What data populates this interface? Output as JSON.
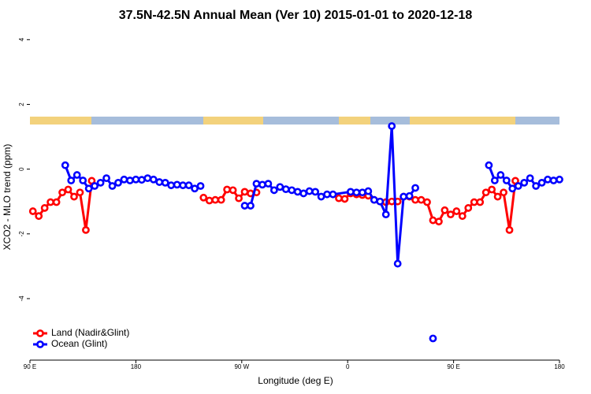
{
  "chart_data": {
    "type": "line",
    "title": "37.5N-42.5N Annual Mean (Ver 10)   2015-01-01 to 2020-12-18",
    "xlabel": "Longitude (deg E)",
    "ylabel": "XCO2 - MLO trend (ppm)",
    "xlim": [
      90,
      540
    ],
    "ylim": [
      -5.9,
      4.3
    ],
    "xticks": [
      {
        "value": 90,
        "label": "90 E"
      },
      180,
      {
        "value": 270,
        "label": "90 W"
      },
      {
        "value": 360,
        "label": "0"
      },
      {
        "value": 450,
        "label": "90 E"
      },
      {
        "value": 540,
        "label": "180"
      }
    ],
    "yticks": [
      4,
      2,
      0,
      -2,
      -4
    ],
    "legend": "bottom-left",
    "series": [
      {
        "name": "Land (Nadir&Glint)",
        "color": "#ff0000",
        "x": [
          92.5,
          97.5,
          102.5,
          107.5,
          112.5,
          117.5,
          122.5,
          127.5,
          132.5,
          137.5,
          142.5,
          null,
          237.5,
          242.5,
          247.5,
          252.5,
          257.5,
          262.5,
          267.5,
          272.5,
          277.5,
          282.5,
          null,
          352.5,
          357.5,
          362.5,
          367.5,
          372.5,
          377.5,
          382.5,
          387.5,
          392.5,
          397.5,
          402.5,
          407.5,
          412.5,
          417.5,
          422.5,
          427.5,
          432.5,
          437.5,
          442.5,
          447.5,
          452.5,
          457.5,
          462.5,
          467.5,
          472.5,
          477.5,
          482.5,
          487.5,
          492.5,
          497.5,
          502.5
        ],
        "values": [
          -1.3,
          -1.45,
          -1.2,
          -1.02,
          -1.02,
          -0.72,
          -0.63,
          -0.85,
          -0.72,
          -1.88,
          -0.36,
          null,
          -0.88,
          -0.97,
          -0.95,
          -0.95,
          -0.63,
          -0.65,
          -0.9,
          -0.7,
          -0.75,
          -0.72,
          null,
          -0.9,
          -0.92,
          -0.75,
          -0.78,
          -0.8,
          -0.82,
          -0.95,
          -1.0,
          -1.02,
          -1.0,
          -1.0,
          -0.85,
          -0.85,
          -0.95,
          -0.95,
          -1.02,
          -1.58,
          -1.62,
          -1.27,
          -1.4,
          -1.3,
          -1.45,
          -1.2,
          -1.02,
          -1.02,
          -0.72,
          -0.63,
          -0.85,
          -0.72,
          -1.88,
          -0.36
        ]
      },
      {
        "name": "Ocean (Glint)",
        "color": "#0000ff",
        "x": [
          120,
          125,
          130,
          135,
          140,
          145,
          150,
          155,
          160,
          165,
          170,
          175,
          180,
          185,
          190,
          195,
          200,
          205,
          210,
          215,
          220,
          225,
          230,
          235,
          null,
          272.5,
          277.5,
          282.5,
          287.5,
          292.5,
          297.5,
          302.5,
          307.5,
          312.5,
          317.5,
          322.5,
          327.5,
          332.5,
          337.5,
          342.5,
          347.5,
          362.5,
          367.5,
          372.5,
          377.5,
          382.5,
          387.5,
          392.5,
          397.5,
          402.5,
          407.5,
          412.5,
          417.5,
          null,
          432.5,
          null,
          480,
          485,
          490,
          495,
          500,
          505,
          510,
          515,
          520,
          525,
          530,
          535,
          540
        ],
        "values": [
          0.12,
          -0.35,
          -0.18,
          -0.35,
          -0.6,
          -0.52,
          -0.42,
          -0.28,
          -0.52,
          -0.42,
          -0.32,
          -0.35,
          -0.32,
          -0.33,
          -0.28,
          -0.32,
          -0.4,
          -0.42,
          -0.5,
          -0.48,
          -0.5,
          -0.5,
          -0.6,
          -0.52,
          null,
          -1.13,
          -1.13,
          -0.45,
          -0.48,
          -0.45,
          -0.65,
          -0.55,
          -0.62,
          -0.65,
          -0.7,
          -0.75,
          -0.68,
          -0.7,
          -0.85,
          -0.78,
          -0.78,
          -0.7,
          -0.72,
          -0.72,
          -0.68,
          -0.95,
          -1.0,
          -1.4,
          1.33,
          -2.92,
          -0.85,
          -0.83,
          -0.58,
          null,
          -5.23,
          null,
          0.12,
          -0.35,
          -0.18,
          -0.35,
          -0.6,
          -0.52,
          -0.42,
          -0.28,
          -0.52,
          -0.42,
          -0.32,
          -0.35,
          -0.32
        ]
      }
    ]
  }
}
